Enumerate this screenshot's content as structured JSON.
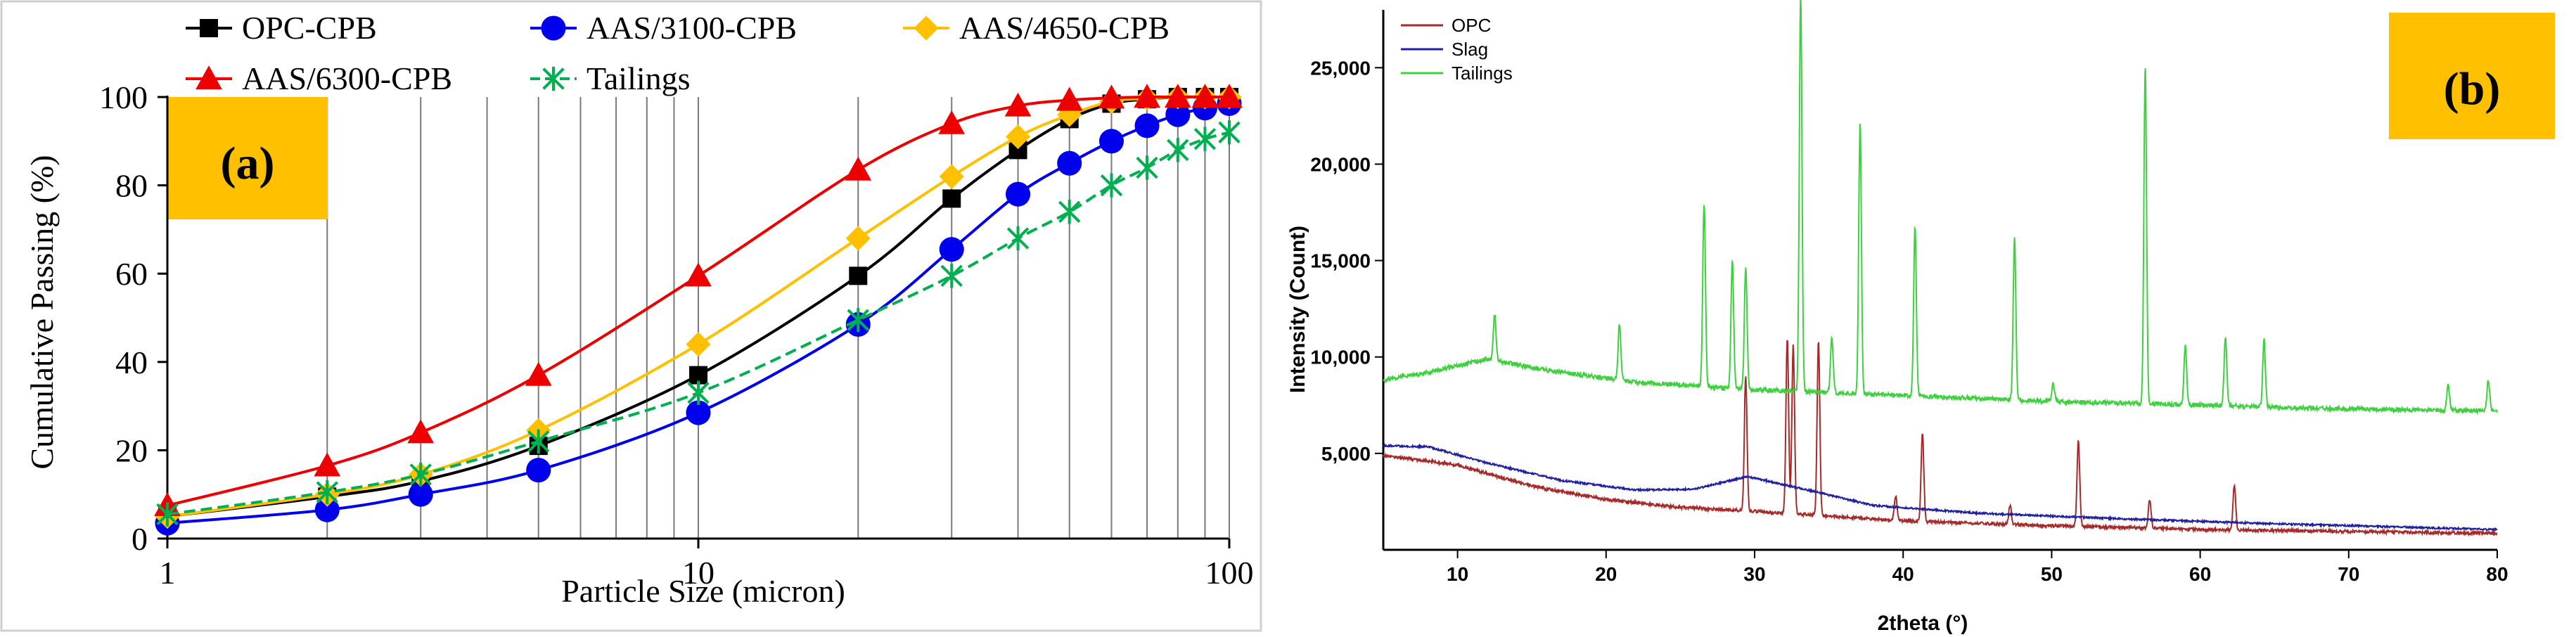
{
  "chart_data": [
    {
      "panel_label": "(a)",
      "type": "line",
      "x_scale": "log",
      "xlabel": "Particle Size (micron)",
      "ylabel": "Cumulative Passing (%)",
      "xlim": [
        1,
        100
      ],
      "ylim": [
        0,
        100
      ],
      "x_ticks": [
        "1",
        "10",
        "100"
      ],
      "y_ticks": [
        "0",
        "20",
        "40",
        "60",
        "80",
        "100"
      ],
      "grid": "vertical log grid",
      "legend_position": "top",
      "x": [
        1,
        2,
        3,
        5,
        10,
        20,
        30,
        40,
        50,
        60,
        70,
        80,
        90,
        100
      ],
      "series": [
        {
          "name": "OPC-CPB",
          "color": "#000000",
          "marker": "square",
          "values": [
            5,
            9.5,
            13,
            21,
            37,
            59.5,
            77,
            88,
            95,
            98.5,
            99.5,
            100,
            100,
            100
          ]
        },
        {
          "name": "AAS/3100-CPB",
          "color": "#0000ee",
          "marker": "circle",
          "values": [
            3.5,
            6.5,
            10,
            15.5,
            28.5,
            48.5,
            65.5,
            78,
            85,
            90,
            93.5,
            96,
            97.5,
            98.5
          ]
        },
        {
          "name": "AAS/4650-CPB",
          "color": "#ffc000",
          "marker": "diamond",
          "values": [
            5,
            10,
            14.5,
            24.5,
            44,
            68,
            82,
            91,
            96,
            99,
            99.7,
            100,
            100,
            100
          ]
        },
        {
          "name": "AAS/6300-CPB",
          "color": "#ee0000",
          "marker": "triangle",
          "values": [
            7.5,
            16.5,
            24,
            37,
            59.5,
            83.5,
            94,
            98,
            99.3,
            99.8,
            100,
            100,
            100,
            100
          ]
        },
        {
          "name": "Tailings",
          "color": "#00b050",
          "marker": "asterisk",
          "dashed": true,
          "values": [
            5.5,
            10.5,
            14.5,
            22,
            33,
            49.5,
            59.5,
            68,
            74,
            80,
            84,
            88,
            90.5,
            92
          ]
        }
      ]
    },
    {
      "panel_label": "(b)",
      "type": "line",
      "xlabel": "2theta (°)",
      "ylabel": "Intensity (Count)",
      "xlim": [
        5,
        80
      ],
      "ylim": [
        0,
        28000
      ],
      "x_ticks": [
        "10",
        "20",
        "30",
        "40",
        "50",
        "60",
        "70",
        "80"
      ],
      "y_ticks": [
        "5,000",
        "10,000",
        "15,000",
        "20,000",
        "25,000"
      ],
      "legend_position": "top-left",
      "series": [
        {
          "name": "OPC",
          "color": "#a52a2a",
          "baseline": [
            [
              5,
              4900
            ],
            [
              10,
              4400
            ],
            [
              15,
              3300
            ],
            [
              20,
              2600
            ],
            [
              25,
              2200
            ],
            [
              30,
              2000
            ],
            [
              40,
              1500
            ],
            [
              50,
              1250
            ],
            [
              60,
              1050
            ],
            [
              70,
              950
            ],
            [
              80,
              850
            ]
          ],
          "peaks": [
            [
              29.4,
              9000
            ],
            [
              32.2,
              11000
            ],
            [
              32.6,
              10600
            ],
            [
              34.3,
              10900
            ],
            [
              41.3,
              6100
            ],
            [
              51.8,
              5700
            ],
            [
              56.6,
              2600
            ],
            [
              62.3,
              3400
            ],
            [
              39.5,
              2800
            ],
            [
              47.2,
              2300
            ]
          ]
        },
        {
          "name": "Slag",
          "color": "#1f1fa0",
          "baseline": [
            [
              5,
              5400
            ],
            [
              8,
              5350
            ],
            [
              12,
              4500
            ],
            [
              17,
              3600
            ],
            [
              22,
              3100
            ],
            [
              26,
              3150
            ],
            [
              29.5,
              3800
            ],
            [
              33,
              3200
            ],
            [
              38,
              2300
            ],
            [
              45,
              1900
            ],
            [
              55,
              1600
            ],
            [
              65,
              1350
            ],
            [
              80,
              1050
            ]
          ],
          "peaks": []
        },
        {
          "name": "Tailings",
          "color": "#3fd03f",
          "baseline": [
            [
              5,
              8800
            ],
            [
              8,
              9200
            ],
            [
              12,
              9900
            ],
            [
              16,
              9300
            ],
            [
              22,
              8700
            ],
            [
              30,
              8300
            ],
            [
              40,
              8000
            ],
            [
              50,
              7700
            ],
            [
              60,
              7500
            ],
            [
              70,
              7300
            ],
            [
              80,
              7200
            ]
          ],
          "peaks": [
            [
              12.5,
              12200
            ],
            [
              20.9,
              11700
            ],
            [
              26.6,
              18000
            ],
            [
              28.5,
              15000
            ],
            [
              29.4,
              14700
            ],
            [
              33.1,
              28900
            ],
            [
              35.2,
              11000
            ],
            [
              37.1,
              22200
            ],
            [
              40.8,
              16800
            ],
            [
              47.5,
              16200
            ],
            [
              50.1,
              8600
            ],
            [
              56.3,
              25100
            ],
            [
              59.0,
              10600
            ],
            [
              61.7,
              11000
            ],
            [
              64.3,
              10900
            ],
            [
              76.7,
              8500
            ],
            [
              79.4,
              8800
            ]
          ]
        }
      ]
    }
  ]
}
